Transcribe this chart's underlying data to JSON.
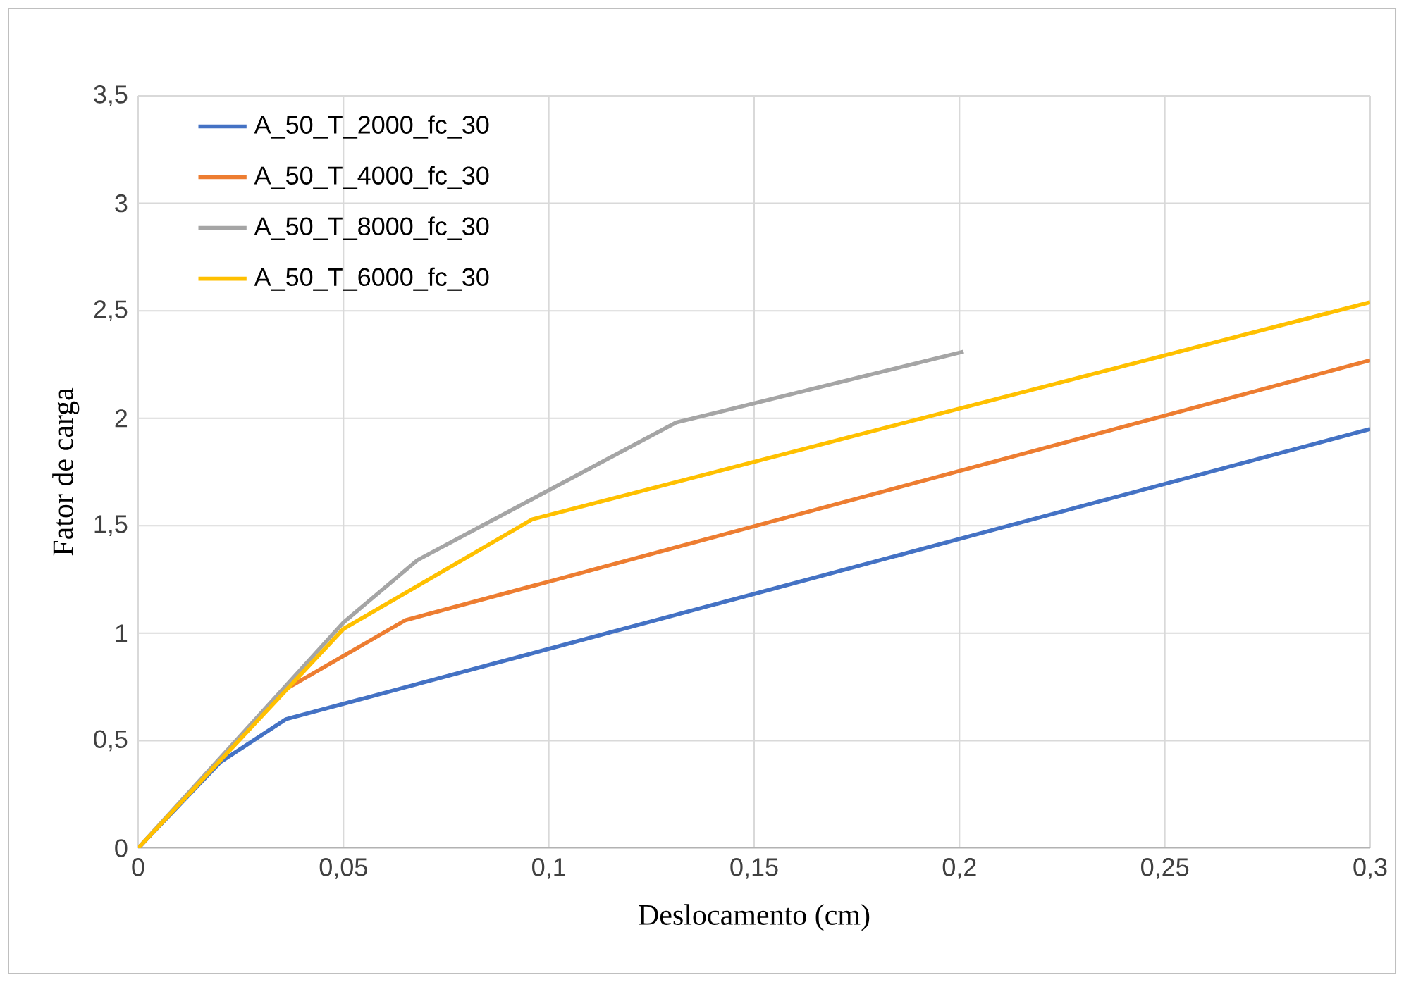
{
  "chart_data": {
    "type": "line",
    "xlabel": "Deslocamento (cm)",
    "ylabel": "Fator de carga",
    "xlim": [
      0,
      0.3
    ],
    "ylim": [
      0,
      3.5
    ],
    "xticks": [
      0,
      {
        "value": 0.05,
        "label": "0,05"
      },
      {
        "value": 0.1,
        "label": "0,1"
      },
      {
        "value": 0.15,
        "label": "0,15"
      },
      {
        "value": 0.2,
        "label": "0,2"
      },
      {
        "value": 0.25,
        "label": "0,25"
      },
      {
        "value": 0.3,
        "label": "0,3"
      }
    ],
    "yticks": [
      0,
      {
        "value": 0.5,
        "label": "0,5"
      },
      1,
      {
        "value": 1.5,
        "label": "1,5"
      },
      2,
      {
        "value": 2.5,
        "label": "2,5"
      },
      3,
      {
        "value": 3.5,
        "label": "3,5"
      }
    ],
    "grid": true,
    "legend": "top left",
    "marker": "none",
    "line_style": "solid",
    "series": [
      {
        "name": "A_50_T_2000_fc_30",
        "color": "#4472c4",
        "x": [
          0,
          0.02,
          0.036,
          0.3
        ],
        "values": [
          0,
          0.4,
          0.6,
          1.95
        ]
      },
      {
        "name": "A_50_T_4000_fc_30",
        "color": "#ed7d31",
        "x": [
          0,
          0.036,
          0.065,
          0.3
        ],
        "values": [
          0,
          0.74,
          1.06,
          2.27
        ]
      },
      {
        "name": "A_50_T_8000_fc_30",
        "color": "#a5a5a5",
        "x": [
          0,
          0.05,
          0.068,
          0.131,
          0.201
        ],
        "values": [
          0,
          1.05,
          1.34,
          1.98,
          2.31
        ]
      },
      {
        "name": "A_50_T_6000_fc_30",
        "color": "#ffc000",
        "x": [
          0,
          0.05,
          0.096,
          0.3
        ],
        "values": [
          0,
          1.02,
          1.53,
          2.54
        ]
      }
    ]
  }
}
